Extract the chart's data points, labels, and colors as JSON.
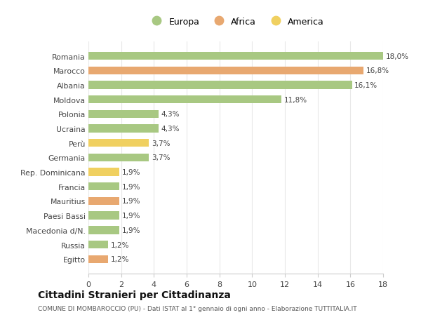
{
  "categories": [
    "Romania",
    "Marocco",
    "Albania",
    "Moldova",
    "Polonia",
    "Ucraina",
    "Perù",
    "Germania",
    "Rep. Dominicana",
    "Francia",
    "Mauritius",
    "Paesi Bassi",
    "Macedonia d/N.",
    "Russia",
    "Egitto"
  ],
  "values": [
    18.0,
    16.8,
    16.1,
    11.8,
    4.3,
    4.3,
    3.7,
    3.7,
    1.9,
    1.9,
    1.9,
    1.9,
    1.9,
    1.2,
    1.2
  ],
  "labels": [
    "18,0%",
    "16,8%",
    "16,1%",
    "11,8%",
    "4,3%",
    "4,3%",
    "3,7%",
    "3,7%",
    "1,9%",
    "1,9%",
    "1,9%",
    "1,9%",
    "1,9%",
    "1,2%",
    "1,2%"
  ],
  "continent": [
    "Europa",
    "Africa",
    "Europa",
    "Europa",
    "Europa",
    "Europa",
    "America",
    "Europa",
    "America",
    "Europa",
    "Africa",
    "Europa",
    "Europa",
    "Europa",
    "Africa"
  ],
  "colors": {
    "Europa": "#a8c882",
    "Africa": "#e8a870",
    "America": "#f0d060"
  },
  "title": "Cittadini Stranieri per Cittadinanza",
  "subtitle": "COMUNE DI MOMBAROCCIO (PU) - Dati ISTAT al 1° gennaio di ogni anno - Elaborazione TUTTITALIA.IT",
  "xlim": [
    0,
    18
  ],
  "xticks": [
    0,
    2,
    4,
    6,
    8,
    10,
    12,
    14,
    16,
    18
  ],
  "background_color": "#ffffff",
  "grid_color": "#e8e8e8"
}
